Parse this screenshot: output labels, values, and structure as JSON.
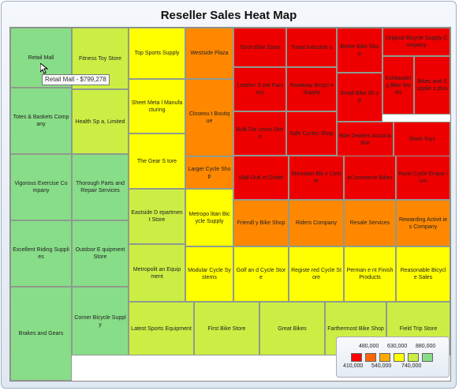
{
  "chart_data": {
    "type": "heatmap",
    "subtype": "treemap",
    "title": "Reseller Sales Heat Map",
    "color_scale": {
      "thresholds": [
        "410,000",
        "480,000",
        "540,000",
        "630,000",
        "740,000",
        "880,000"
      ],
      "colors": [
        "#ff0000",
        "#ff6600",
        "#ffaa00",
        "#ffff00",
        "#ccee44",
        "#88dd88"
      ]
    },
    "tooltip": "Retail Mall - $799,278",
    "tiles": [
      {
        "label": "Retail Mall",
        "color": "#88dd88"
      },
      {
        "label": "Totes & Baskets Company",
        "color": "#88dd88"
      },
      {
        "label": "Vigorous Exercise Company",
        "color": "#88dd88"
      },
      {
        "label": "Excellent Riding Supplies",
        "color": "#88dd88"
      },
      {
        "label": "Brakes and Gears",
        "color": "#88dd88"
      },
      {
        "label": "Fitness Toy Store",
        "color": "#ccee44"
      },
      {
        "label": "Health Sp a, Limited",
        "color": "#ccee44"
      },
      {
        "label": "Thorough Parts and Repair Services",
        "color": "#88dd88"
      },
      {
        "label": "Outdoor E quipment Store",
        "color": "#88dd88"
      },
      {
        "label": "Corner Bicycle Supply",
        "color": "#88dd88"
      },
      {
        "label": "Top Sports Supply",
        "color": "#ffff00"
      },
      {
        "label": "Sheet Meta l Manufacturing",
        "color": "#ffff00"
      },
      {
        "label": "The Gear S tore",
        "color": "#ffff00"
      },
      {
        "label": "Eastside D epartment Store",
        "color": "#ccee44"
      },
      {
        "label": "Metropolit an Equipment",
        "color": "#ccee44"
      },
      {
        "label": "Westside Plaza",
        "color": "#ff8800"
      },
      {
        "label": "Closeou t Boutique",
        "color": "#ff8800"
      },
      {
        "label": "Larger Cycle Shop",
        "color": "#ff8800"
      },
      {
        "label": "Metropo litan Bicycle Supply",
        "color": "#ffff00"
      },
      {
        "label": "Modular Cycle Systems",
        "color": "#ffff00"
      },
      {
        "label": "Golf an d Cycle Store",
        "color": "#ffff00"
      },
      {
        "label": "Registe red Cycle Store",
        "color": "#ffff00"
      },
      {
        "label": "Perman e nt Finish Products",
        "color": "#ffff00"
      },
      {
        "label": "Reasonable Bicycl e Sales",
        "color": "#ffff00"
      },
      {
        "label": "Latest Sports Equipment",
        "color": "#ccee44"
      },
      {
        "label": "First Bike Store",
        "color": "#ccee44"
      },
      {
        "label": "Great Bikes",
        "color": "#ccee44"
      },
      {
        "label": "Farthermost Bike Shop",
        "color": "#ccee44"
      },
      {
        "label": "Field Trip Store",
        "color": "#ccee44"
      },
      {
        "label": "Torch Bike Store",
        "color": "#ee0000"
      },
      {
        "label": "Tread Industrie s",
        "color": "#ee0000"
      },
      {
        "label": "Better Bike Shop",
        "color": "#ee0000"
      },
      {
        "label": "Original Bicycle Supply Company",
        "color": "#ee0000"
      },
      {
        "label": "Leather S eat Factory",
        "color": "#ee0000"
      },
      {
        "label": "Roadway Bicycl e Supply",
        "color": "#ee0000"
      },
      {
        "label": "Small Bike Sh op",
        "color": "#ee0000"
      },
      {
        "label": "Exhilarating Bike Works",
        "color": "#ee0000"
      },
      {
        "label": "Bikes and Supplie s plus",
        "color": "#ee0000"
      },
      {
        "label": "Bulk Dis count Store",
        "color": "#ee0000"
      },
      {
        "label": "Safe Cycles Shop",
        "color": "#ee0000"
      },
      {
        "label": "Bike Dealers Association",
        "color": "#ee0000"
      },
      {
        "label": "Sleek Toys",
        "color": "#ee0000"
      },
      {
        "label": "Mall Outl et Outlet",
        "color": "#ee0000"
      },
      {
        "label": "Mountain Bik e Center",
        "color": "#ee0000"
      },
      {
        "label": "eCommerce Bikes",
        "color": "#ee0000"
      },
      {
        "label": "Rural Cycle Empor ium",
        "color": "#ee0000"
      },
      {
        "label": "Friendl y Bike Shop",
        "color": "#ff8800"
      },
      {
        "label": "Riders Company",
        "color": "#ff8800"
      },
      {
        "label": "Resale Services",
        "color": "#ff8800"
      },
      {
        "label": "Rewarding Activit ies Company",
        "color": "#ff8800"
      }
    ]
  }
}
